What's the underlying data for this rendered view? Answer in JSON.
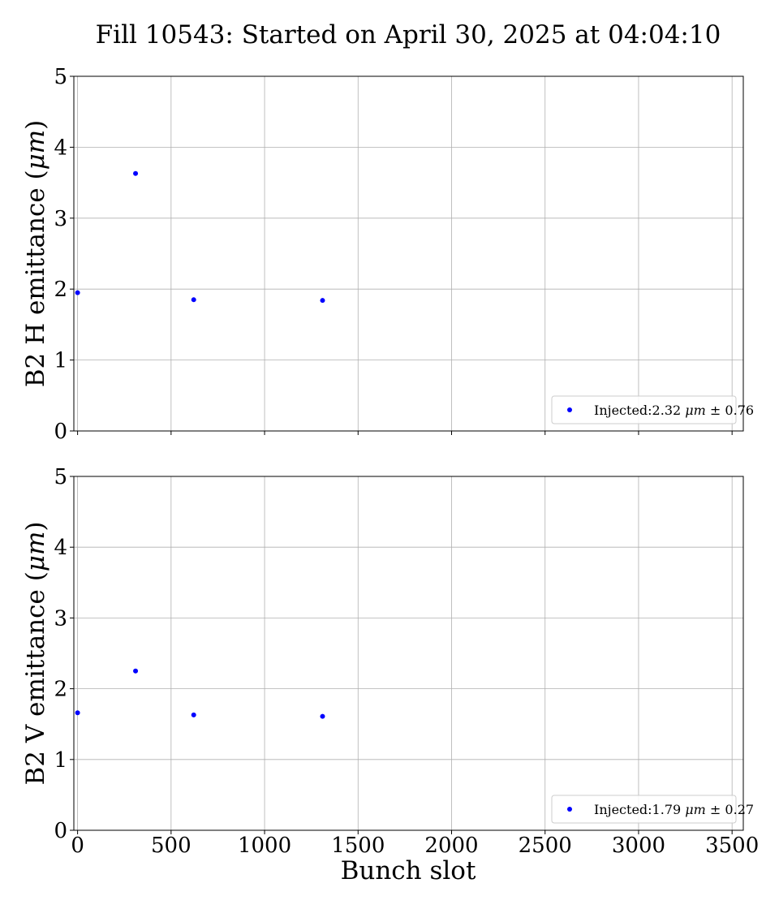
{
  "chart_data": {
    "title": "Fill 10543: Started on April 30, 2025 at 04:04:10",
    "xlabel": "Bunch slot",
    "xlim": [
      -20,
      3560
    ],
    "xticks": [
      0,
      500,
      1000,
      1500,
      2000,
      2500,
      3000,
      3500
    ],
    "grid": true,
    "panels": [
      {
        "type": "scatter",
        "ylabel_text": "B2 H emittance (",
        "ylabel_unit": "μm",
        "ylabel_close": ")",
        "ylim": [
          0,
          5
        ],
        "yticks": [
          0,
          1,
          2,
          3,
          4,
          5
        ],
        "color": "#0000ff",
        "legend_position": "lower right",
        "series": [
          {
            "legend_prefix": "Injected:2.32 ",
            "legend_unit": "μm",
            "legend_suffix": " ± 0.76",
            "x": [
              0,
              310,
              621,
              1310
            ],
            "y": [
              1.95,
              3.63,
              1.85,
              1.84
            ]
          }
        ]
      },
      {
        "type": "scatter",
        "ylabel_text": "B2 V emittance (",
        "ylabel_unit": "μm",
        "ylabel_close": ")",
        "ylim": [
          0,
          5
        ],
        "yticks": [
          0,
          1,
          2,
          3,
          4,
          5
        ],
        "color": "#0000ff",
        "legend_position": "lower right",
        "series": [
          {
            "legend_prefix": "Injected:1.79 ",
            "legend_unit": "μm",
            "legend_suffix": " ± 0.27",
            "x": [
              0,
              310,
              621,
              1310
            ],
            "y": [
              1.66,
              2.25,
              1.63,
              1.61
            ]
          }
        ]
      }
    ]
  }
}
